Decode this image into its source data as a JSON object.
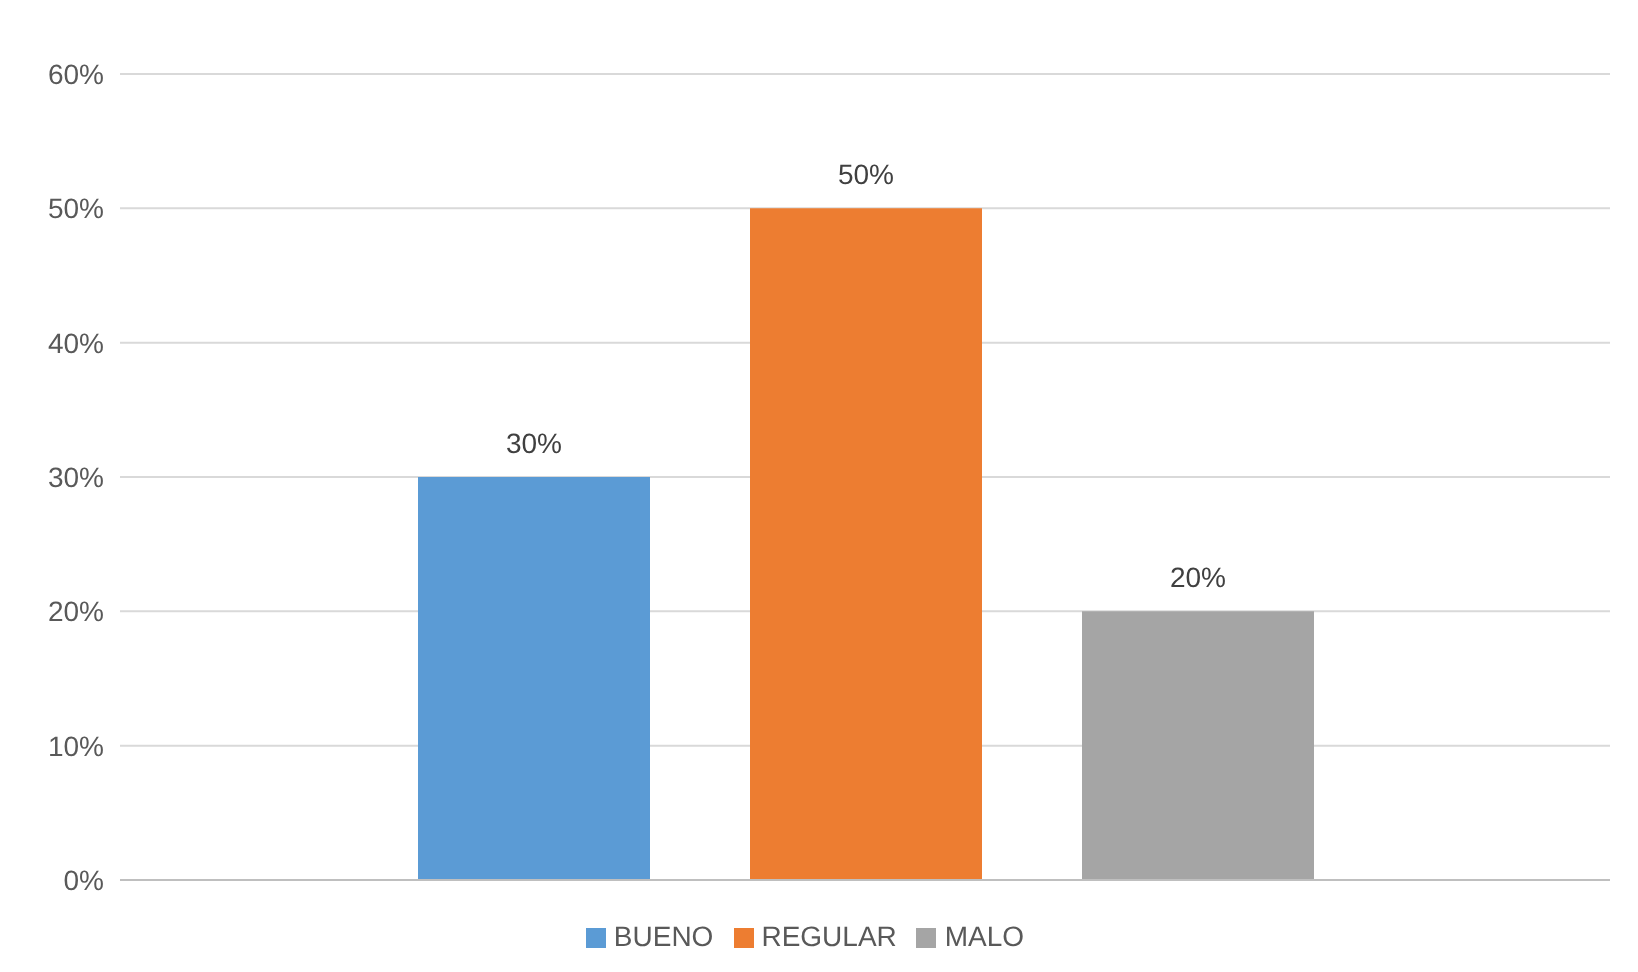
{
  "chart_data": {
    "type": "bar",
    "categories": [
      null
    ],
    "series": [
      {
        "name": "BUENO",
        "color": "#5b9bd5",
        "values": [
          30
        ],
        "value_labels": [
          "30%"
        ]
      },
      {
        "name": "REGULAR",
        "color": "#ed7d31",
        "values": [
          50
        ],
        "value_labels": [
          "50%"
        ]
      },
      {
        "name": "MALO",
        "color": "#a5a5a5",
        "values": [
          20
        ],
        "value_labels": [
          "20%"
        ]
      }
    ],
    "ylim": [
      0,
      60
    ],
    "yticks": [
      {
        "value": 0,
        "label": "0%"
      },
      {
        "value": 10,
        "label": "10%"
      },
      {
        "value": 20,
        "label": "20%"
      },
      {
        "value": 30,
        "label": "30%"
      },
      {
        "value": 40,
        "label": "40%"
      },
      {
        "value": 50,
        "label": "50%"
      },
      {
        "value": 60,
        "label": "60%"
      }
    ],
    "grid": "y",
    "legend": "bottom"
  }
}
